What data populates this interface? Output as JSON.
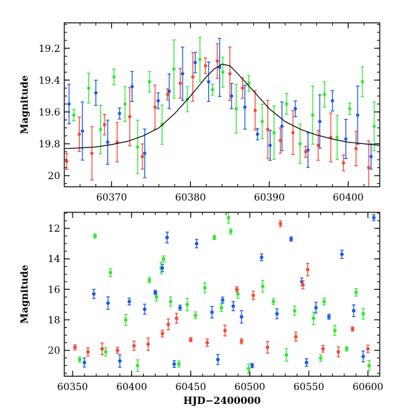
{
  "chart_data": [
    {
      "type": "scatter",
      "ylabel": "Magnitude",
      "xlabel": "",
      "xlim": [
        60364,
        60404
      ],
      "ylim": [
        20.07,
        19.04
      ],
      "y_inverted": true,
      "x_ticks": [
        60370,
        60380,
        60390,
        60400
      ],
      "x_tick_labels": [
        "60370",
        "60380",
        "60390",
        "60400"
      ],
      "y_ticks": [
        19.2,
        19.4,
        19.6,
        19.8,
        20.0
      ],
      "y_tick_labels": [
        "19.2",
        "19.4",
        "19.6",
        "19.8",
        "20"
      ],
      "model_curve": {
        "color": "#000000",
        "x": [
          60364,
          60366,
          60368,
          60370,
          60372,
          60374,
          60376,
          60378,
          60380,
          60382,
          60383,
          60384,
          60385,
          60386,
          60388,
          60390,
          60392,
          60394,
          60396,
          60398,
          60400,
          60402,
          60404
        ],
        "y": [
          19.83,
          19.826,
          19.82,
          19.805,
          19.785,
          19.75,
          19.7,
          19.61,
          19.5,
          19.38,
          19.33,
          19.3,
          19.31,
          19.36,
          19.47,
          19.58,
          19.66,
          19.71,
          19.745,
          19.77,
          19.79,
          19.8,
          19.81
        ]
      },
      "series": [
        {
          "color": "#33e633",
          "x": [
            60365.2,
            60367.1,
            60368.6,
            60370.3,
            60371.7,
            60373.3,
            60374.8,
            60376.4,
            60377.9,
            60379.6,
            60381.2,
            60382.8,
            60384.1,
            60385.8,
            60387.4,
            60389.1,
            60390.6,
            60392.2,
            60393.9,
            60395.5,
            60397.0,
            60398.6,
            60400.2,
            60401.8,
            60403.3
          ],
          "y": [
            19.62,
            19.45,
            19.71,
            19.38,
            19.55,
            19.82,
            19.41,
            19.68,
            19.33,
            19.52,
            19.27,
            19.46,
            19.35,
            19.58,
            19.42,
            19.66,
            19.73,
            19.55,
            19.8,
            19.62,
            19.49,
            19.76,
            19.58,
            19.41,
            19.69
          ]
        },
        {
          "color": "#1a5ae6",
          "x": [
            60364.6,
            60366.3,
            60368.0,
            60369.5,
            60371.0,
            60372.6,
            60374.2,
            60375.9,
            60377.3,
            60379.0,
            60380.6,
            60382.3,
            60383.7,
            60385.2,
            60386.9,
            60388.5,
            60390.1,
            60391.6,
            60393.3,
            60394.9,
            60396.4,
            60398.0,
            60399.7,
            60401.2,
            60402.9
          ],
          "y": [
            19.55,
            19.72,
            19.48,
            19.79,
            19.61,
            19.44,
            19.86,
            19.53,
            19.47,
            19.36,
            19.29,
            19.41,
            19.32,
            19.5,
            19.57,
            19.74,
            19.81,
            19.69,
            19.58,
            19.84,
            19.66,
            19.53,
            19.77,
            19.62,
            19.88
          ]
        },
        {
          "color": "#f24a35",
          "x": [
            60364.3,
            60365.9,
            60367.5,
            60369.1,
            60370.7,
            60372.3,
            60373.9,
            60375.5,
            60377.1,
            60378.7,
            60380.3,
            60381.9,
            60383.4,
            60385.0,
            60386.6,
            60388.2,
            60389.8,
            60391.4,
            60393.0,
            60394.6,
            60396.2,
            60397.8,
            60399.4,
            60401.0,
            60402.6
          ],
          "y": [
            19.91,
            19.74,
            19.86,
            19.68,
            19.79,
            19.63,
            19.88,
            19.57,
            19.49,
            19.42,
            19.38,
            19.31,
            19.28,
            19.36,
            19.45,
            19.59,
            19.71,
            19.78,
            19.73,
            19.85,
            19.81,
            19.76,
            19.92,
            19.83,
            19.95
          ]
        }
      ]
    },
    {
      "type": "scatter",
      "ylabel": "Magnitude",
      "xlabel": "HJD−2400000",
      "xlim": [
        60343,
        60610
      ],
      "ylim": [
        21.7,
        10.95
      ],
      "y_inverted": true,
      "x_ticks": [
        60350,
        60400,
        60450,
        60500,
        60550,
        60600
      ],
      "x_tick_labels": [
        "60350",
        "60400",
        "60450",
        "60500",
        "60550",
        "60600"
      ],
      "y_ticks": [
        12,
        14,
        16,
        18,
        20
      ],
      "y_tick_labels": [
        "12",
        "14",
        "16",
        "18",
        "20"
      ],
      "series": [
        {
          "color": "#33e633",
          "x": [
            60369,
            60382,
            60395,
            60415,
            60421,
            60425,
            60427,
            60433,
            60447,
            60454,
            60462,
            60470,
            60476,
            60482,
            60484,
            60490,
            60511,
            60520,
            60538,
            60554,
            60563,
            60572,
            60582,
            60590,
            60596,
            60356,
            60378,
            60405,
            60440,
            60499,
            60531,
            60560,
            60601
          ],
          "y": [
            12.5,
            14.9,
            18.0,
            15.4,
            16.5,
            14.6,
            14.0,
            16.8,
            17.0,
            17.7,
            15.9,
            12.6,
            17.2,
            11.3,
            12.2,
            16.3,
            15.8,
            16.8,
            17.4,
            17.9,
            16.8,
            18.7,
            19.9,
            16.2,
            17.6,
            20.6,
            20.1,
            21.0,
            20.9,
            21.2,
            20.3,
            20.5,
            21.0
          ]
        },
        {
          "color": "#1a5ae6",
          "x": [
            60368,
            60380,
            60398,
            60411,
            60420,
            60426,
            60430,
            60441,
            60455,
            60468,
            60477,
            60486,
            60493,
            60510,
            60523,
            60535,
            60544,
            60556,
            60567,
            60578,
            60588,
            60605,
            60360,
            60390,
            60436,
            60473,
            60502,
            60548,
            60596
          ],
          "y": [
            16.3,
            16.9,
            16.8,
            17.3,
            16.2,
            14.6,
            12.6,
            17.2,
            13.0,
            17.5,
            16.7,
            17.1,
            17.8,
            13.9,
            17.6,
            12.7,
            15.5,
            17.2,
            17.8,
            13.7,
            17.4,
            11.3,
            20.8,
            20.7,
            20.9,
            20.6,
            21.0,
            20.8,
            20.4
          ]
        },
        {
          "color": "#f24a35",
          "x": [
            60352,
            60363,
            60375,
            60388,
            60402,
            60414,
            60426,
            60438,
            60450,
            60464,
            60479,
            60493,
            60503,
            60515,
            60526,
            60539,
            60549,
            60562,
            60575,
            60587,
            60600,
            60431,
            60489,
            60545
          ],
          "y": [
            19.8,
            20.1,
            19.9,
            20.0,
            19.7,
            19.6,
            18.9,
            17.9,
            19.3,
            19.5,
            18.7,
            19.4,
            16.4,
            19.8,
            11.7,
            19.1,
            14.7,
            19.9,
            20.1,
            18.6,
            19.9,
            18.3,
            16.0,
            15.7
          ]
        }
      ]
    }
  ]
}
